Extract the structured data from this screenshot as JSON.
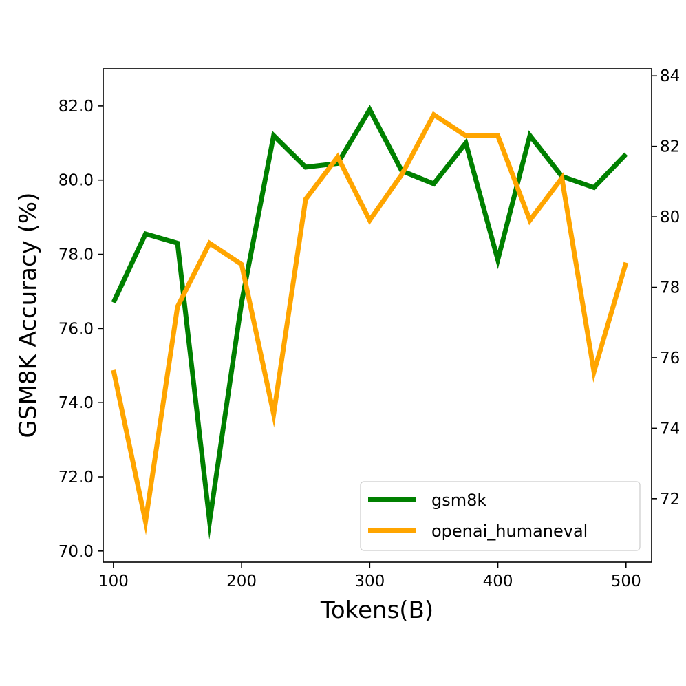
{
  "chart_data": {
    "type": "line",
    "title": "",
    "xlabel": "Tokens(B)",
    "ylabel": "GSM8K Accuracy (%)",
    "y2label": "",
    "xlim": [
      92,
      520
    ],
    "ylim": [
      69.7,
      83.0
    ],
    "y2lim": [
      70.2,
      84.2
    ],
    "x_ticks": [
      100,
      200,
      300,
      400,
      500
    ],
    "y_ticks": [
      70.0,
      72.0,
      74.0,
      76.0,
      78.0,
      80.0,
      82.0
    ],
    "y_tick_labels": [
      "70.0",
      "72.0",
      "74.0",
      "76.0",
      "78.0",
      "80.0",
      "82.0"
    ],
    "y2_ticks": [
      72,
      74,
      76,
      78,
      80,
      82,
      84
    ],
    "grid": false,
    "legend_position": "lower-right",
    "series": [
      {
        "name": "gsm8k",
        "axis": "left",
        "color": "#008000",
        "x": [
          100,
          125,
          150,
          175,
          200,
          225,
          250,
          275,
          300,
          325,
          350,
          375,
          400,
          425,
          450,
          475,
          500
        ],
        "values": [
          76.7,
          78.55,
          78.3,
          70.8,
          76.7,
          81.2,
          80.35,
          80.45,
          81.9,
          80.25,
          79.9,
          81.0,
          77.85,
          81.2,
          80.1,
          79.8,
          80.7
        ]
      },
      {
        "name": "openai_humaneval",
        "axis": "right",
        "color": "#FFA500",
        "x": [
          100,
          125,
          150,
          175,
          200,
          225,
          250,
          275,
          300,
          325,
          350,
          375,
          400,
          425,
          450,
          475,
          500
        ],
        "values": [
          75.65,
          71.35,
          77.45,
          79.25,
          78.65,
          74.4,
          80.5,
          81.7,
          79.9,
          81.2,
          82.9,
          82.3,
          82.3,
          79.9,
          81.1,
          75.6,
          78.7
        ]
      }
    ]
  }
}
